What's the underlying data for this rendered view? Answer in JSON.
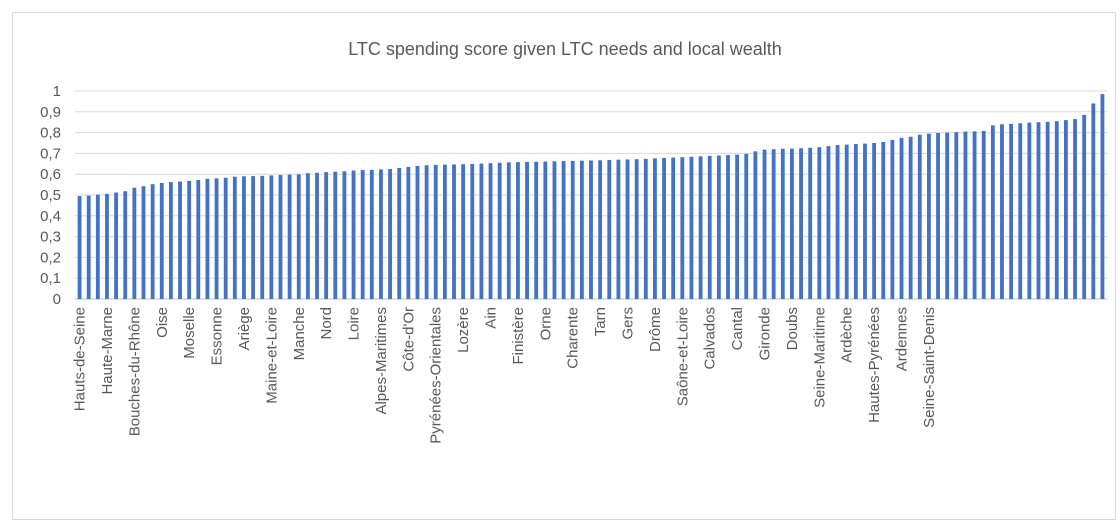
{
  "chart_data": {
    "type": "bar",
    "title": "LTC spending score given LTC needs and local wealth",
    "xlabel": "",
    "ylabel": "",
    "ylim": [
      0,
      1
    ],
    "y_ticks": [
      "0",
      "0,1",
      "0,2",
      "0,3",
      "0,4",
      "0,5",
      "0,6",
      "0,7",
      "0,8",
      "0,9",
      "1"
    ],
    "grid": true,
    "legend": "none",
    "bar_color": "#4472c4",
    "labeled_categories": [
      "Hauts-de-Seine",
      "Haute-Marne",
      "Bouches-du-Rhône",
      "Oise",
      "Moselle",
      "Essonne",
      "Ariège",
      "Maine-et-Loire",
      "Manche",
      "Nord",
      "Loire",
      "Alpes-Maritimes",
      "Côte-d'Or",
      "Pyrénées-Orientales",
      "Lozère",
      "Ain",
      "Finistère",
      "Orne",
      "Charente",
      "Tarn",
      "Gers",
      "Drôme",
      "Saône-et-Loire",
      "Calvados",
      "Cantal",
      "Gironde",
      "Doubs",
      "Seine-Maritime",
      "Ardèche",
      "Hautes-Pyrénées",
      "Ardennes",
      "Seine-Saint-Denis"
    ],
    "label_every": 3,
    "values": [
      0.495,
      0.497,
      0.502,
      0.505,
      0.512,
      0.518,
      0.535,
      0.542,
      0.552,
      0.558,
      0.562,
      0.565,
      0.568,
      0.572,
      0.578,
      0.58,
      0.583,
      0.588,
      0.59,
      0.591,
      0.592,
      0.594,
      0.596,
      0.598,
      0.6,
      0.605,
      0.607,
      0.61,
      0.612,
      0.614,
      0.618,
      0.62,
      0.621,
      0.623,
      0.625,
      0.63,
      0.635,
      0.64,
      0.643,
      0.645,
      0.646,
      0.647,
      0.648,
      0.649,
      0.651,
      0.653,
      0.655,
      0.657,
      0.658,
      0.659,
      0.66,
      0.661,
      0.662,
      0.663,
      0.664,
      0.665,
      0.666,
      0.667,
      0.668,
      0.67,
      0.671,
      0.672,
      0.674,
      0.676,
      0.678,
      0.68,
      0.682,
      0.684,
      0.686,
      0.688,
      0.69,
      0.692,
      0.694,
      0.698,
      0.71,
      0.718,
      0.72,
      0.722,
      0.723,
      0.725,
      0.727,
      0.73,
      0.735,
      0.74,
      0.742,
      0.745,
      0.747,
      0.75,
      0.755,
      0.765,
      0.775,
      0.78,
      0.79,
      0.795,
      0.798,
      0.8,
      0.802,
      0.805,
      0.806,
      0.808,
      0.835,
      0.84,
      0.842,
      0.845,
      0.848,
      0.85,
      0.852,
      0.855,
      0.86,
      0.865,
      0.885,
      0.94,
      0.985
    ]
  }
}
